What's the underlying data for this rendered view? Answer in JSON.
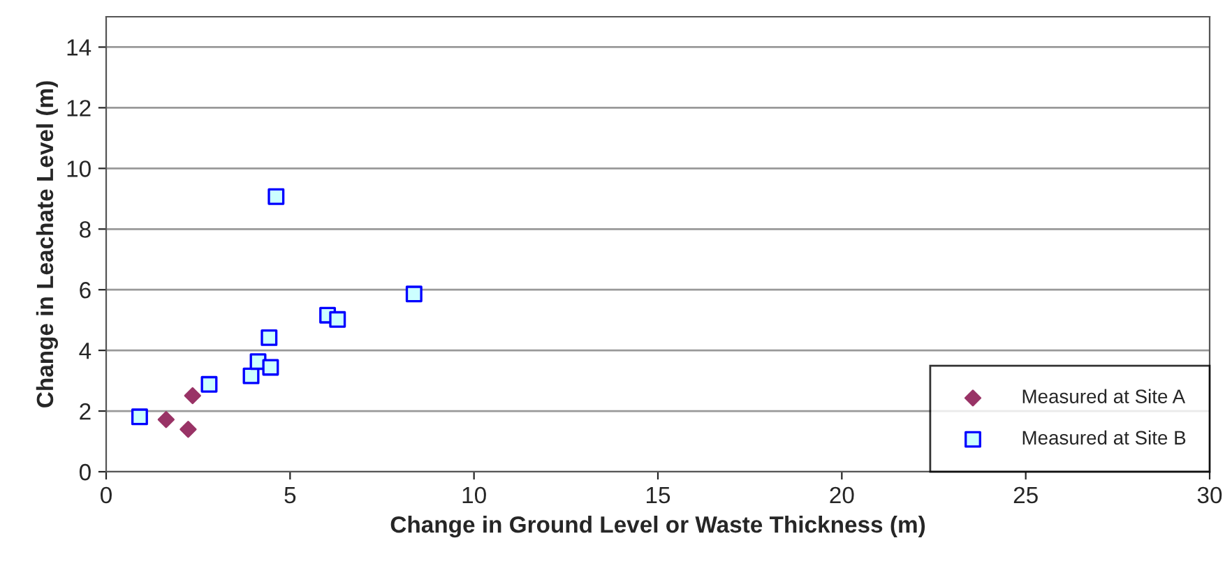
{
  "chart_data": {
    "type": "scatter",
    "xlabel": "Change in Ground Level or Waste Thickness (m)",
    "ylabel": "Change in Leachate Level (m)",
    "xlim": [
      0,
      30
    ],
    "xticks": [
      0,
      5,
      10,
      15,
      20,
      25,
      30
    ],
    "ylim": [
      0,
      15
    ],
    "yticks": [
      0,
      2,
      4,
      6,
      8,
      10,
      12,
      14
    ],
    "grid": "y",
    "legend": "lower right",
    "series": [
      {
        "name": "Measured at Site A",
        "color": "#993366",
        "marker": "diamond",
        "x": [
          1.63,
          2.35,
          2.23
        ],
        "values": [
          1.72,
          2.51,
          1.4
        ]
      },
      {
        "name": "Measured at Site B",
        "color": "#0000ff",
        "marker": "square",
        "x": [
          0.91,
          2.8,
          3.94,
          4.13,
          4.47,
          4.43,
          4.62,
          6.02,
          6.29,
          8.37
        ],
        "values": [
          1.81,
          2.88,
          3.16,
          3.63,
          3.44,
          4.42,
          9.07,
          5.16,
          5.02,
          5.86
        ]
      }
    ]
  }
}
